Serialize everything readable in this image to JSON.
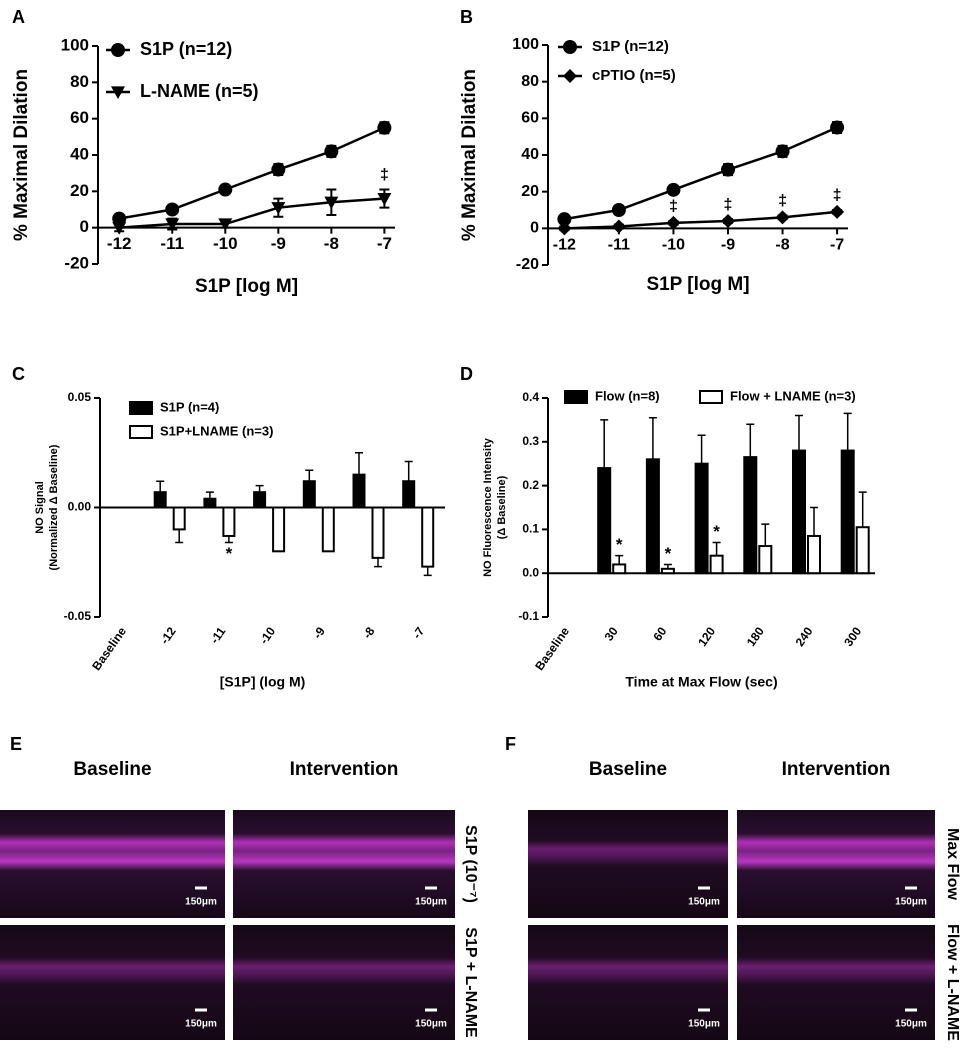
{
  "chart_data": [
    {
      "type": "line",
      "label": "A",
      "ylabel": "% Maximal Dilation",
      "xlabel": "S1P [log M]",
      "x": [
        -12,
        -11,
        -10,
        -9,
        -8,
        -7
      ],
      "xlim": [
        -12.4,
        -6.8
      ],
      "xticks": [
        -12,
        -11,
        -10,
        -9,
        -8,
        -7
      ],
      "ylim": [
        -20,
        100
      ],
      "yticks": [
        -20,
        0,
        20,
        40,
        60,
        80,
        100
      ],
      "series": [
        {
          "name": "S1P (n=12)",
          "color": "#000000",
          "marker": "circle",
          "values": [
            5,
            10,
            21,
            32,
            42,
            55
          ],
          "errors": [
            2,
            2,
            2,
            3,
            3,
            3
          ],
          "annotations": [
            null,
            null,
            null,
            null,
            null,
            null
          ]
        },
        {
          "name": "L-NAME  (n=5)",
          "color": "#000000",
          "marker": "triangle-down",
          "values": [
            0,
            2,
            2,
            11,
            14,
            16
          ],
          "errors": [
            2,
            3,
            2,
            5,
            7,
            5
          ],
          "annotations": [
            null,
            null,
            null,
            null,
            null,
            "‡"
          ]
        }
      ]
    },
    {
      "type": "line",
      "label": "B",
      "ylabel": "% Maximal Dilation",
      "xlabel": "S1P [log M]",
      "x": [
        -12,
        -11,
        -10,
        -9,
        -8,
        -7
      ],
      "xlim": [
        -12.3,
        -6.8
      ],
      "xticks": [
        -12,
        -11,
        -10,
        -9,
        -8,
        -7
      ],
      "ylim": [
        -20,
        100
      ],
      "yticks": [
        -20,
        0,
        20,
        40,
        60,
        80,
        100
      ],
      "series": [
        {
          "name": "S1P (n=12)",
          "color": "#000000",
          "marker": "circle",
          "values": [
            5,
            10,
            21,
            32,
            42,
            55
          ],
          "errors": [
            2,
            2,
            2,
            3,
            3,
            3
          ],
          "annotations": [
            null,
            null,
            null,
            null,
            null,
            null
          ]
        },
        {
          "name": "cPTIO (n=5)",
          "color": "#000000",
          "marker": "diamond",
          "values": [
            0,
            1,
            3,
            4,
            6,
            9
          ],
          "errors": [
            1,
            1,
            1,
            1,
            1,
            1
          ],
          "annotations": [
            null,
            null,
            "‡",
            "‡",
            "‡",
            "‡"
          ]
        }
      ]
    },
    {
      "type": "bar",
      "label": "C",
      "ylabel": [
        "NO Signal",
        "(Normalized Δ Baseline)"
      ],
      "xlabel": "[S1P] (log  M)",
      "categories": [
        "Baseline",
        "-12",
        "-11",
        "-10",
        "-9",
        "-8",
        "-7"
      ],
      "ylim": [
        -0.05,
        0.05
      ],
      "yticks": [
        -0.05,
        {
          "value": 0,
          "label": "0.00"
        },
        0.05
      ],
      "series": [
        {
          "name": "S1P (n=4)",
          "color": "#000000",
          "values": [
            null,
            0.007,
            0.004,
            0.007,
            0.012,
            0.015,
            0.012
          ],
          "errors": [
            null,
            0.005,
            0.003,
            0.003,
            0.005,
            0.01,
            0.009
          ],
          "annotations": [
            null,
            null,
            null,
            null,
            null,
            null,
            null
          ]
        },
        {
          "name": "S1P+LNAME (n=3)",
          "color": "#ffffff",
          "values": [
            null,
            -0.01,
            -0.013,
            -0.02,
            -0.02,
            -0.023,
            -0.027
          ],
          "errors": [
            null,
            0.006,
            0.003,
            0,
            0,
            0.004,
            0.004
          ],
          "annotations": [
            null,
            null,
            "*",
            null,
            null,
            null,
            null
          ]
        }
      ]
    },
    {
      "type": "bar",
      "label": "D",
      "ylabel": [
        "NO  Fluorescence Intensity",
        "(Δ Baseline)"
      ],
      "xlabel": "Time at  Max  Flow (sec)",
      "categories": [
        "Baseline",
        "30",
        "60",
        "120",
        "180",
        "240",
        "300"
      ],
      "ylim": [
        -0.1,
        0.4
      ],
      "yticks": [
        -0.1,
        {
          "value": 0,
          "label": "0.0"
        },
        0.1,
        0.2,
        0.3,
        0.4
      ],
      "series": [
        {
          "name": "Flow (n=8)",
          "color": "#000000",
          "values": [
            null,
            0.24,
            0.26,
            0.25,
            0.265,
            0.28,
            0.28
          ],
          "errors": [
            null,
            0.11,
            0.095,
            0.065,
            0.075,
            0.08,
            0.085
          ],
          "annotations": [
            null,
            null,
            null,
            null,
            null,
            null,
            null
          ]
        },
        {
          "name": "Flow + LNAME (n=3)",
          "color": "#ffffff",
          "values": [
            null,
            0.02,
            0.01,
            0.04,
            0.062,
            0.085,
            0.105
          ],
          "errors": [
            null,
            0.02,
            0.01,
            0.03,
            0.05,
            0.065,
            0.08
          ],
          "annotations": [
            null,
            "*",
            "*",
            "*",
            null,
            null,
            null
          ]
        }
      ]
    }
  ],
  "image_panels": [
    {
      "label": "E",
      "columns": [
        "Baseline",
        "Intervention"
      ],
      "rows": [
        "S1P (10⁻⁷)",
        "S1P + L-NAME"
      ],
      "scale_bars": [
        "150μm",
        "150μm",
        "150μm",
        "150μm"
      ]
    },
    {
      "label": "F",
      "columns": [
        "Baseline",
        "Intervention"
      ],
      "rows": [
        "Max Flow",
        "Flow + L-NAME"
      ],
      "scale_bars": [
        "150μm",
        "150μm",
        "150μm",
        "150μm"
      ]
    }
  ]
}
